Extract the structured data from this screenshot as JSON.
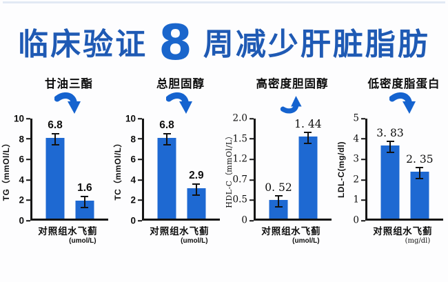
{
  "header": {
    "title_part1": "临床验证",
    "title_number": "8",
    "title_part2": "周减少肝脏脂肪"
  },
  "colors": {
    "title_blue": "#1f5ab4",
    "number_blue": "#1a66cc",
    "bar_blue": "#1e69d2",
    "arrow_blue": "#1563cf",
    "top_line": "#e2e9f4"
  },
  "chart_data": [
    {
      "type": "bar",
      "title": "甘油三酯",
      "trend_arrow": "down",
      "ylabel": "TG（mmOl/L）",
      "ylim": [
        0,
        10
      ],
      "yticks": [
        "10",
        "8",
        "6",
        "4",
        "2",
        "0"
      ],
      "categories": [
        "对照组",
        "水飞蓟"
      ],
      "category_unit": "(umol/L)",
      "values": [
        6.8,
        1.6
      ],
      "value_labels": [
        "6.8",
        "1.6"
      ],
      "bar_top_pct": [
        81,
        18
      ],
      "error_bars": true,
      "legend": "none",
      "grid": false
    },
    {
      "type": "bar",
      "title": "总胆固醇",
      "trend_arrow": "down",
      "ylabel": "TC（mmOl/L）",
      "ylim": [
        0,
        10
      ],
      "yticks": [
        "10",
        "8",
        "6",
        "4",
        "2",
        "0"
      ],
      "categories": [
        "对照组",
        "水飞蓟"
      ],
      "category_unit": "(umol/L)",
      "values": [
        6.8,
        2.9
      ],
      "value_labels": [
        "6.8",
        "2.9"
      ],
      "bar_top_pct": [
        81,
        30.5
      ],
      "error_bars": true,
      "legend": "none",
      "grid": false
    },
    {
      "type": "bar",
      "title": "高密度胆固醇",
      "trend_arrow": "up",
      "ylabel": "HDL-C（mmOl/L）",
      "ylim": [
        0,
        2
      ],
      "yticks": [
        "2.0",
        "1.5",
        "1.2",
        "0.7",
        "0.5",
        "0"
      ],
      "categories": [
        "对照组",
        "水飞蓟"
      ],
      "category_unit": "(umol/L)",
      "values": [
        0.52,
        1.44
      ],
      "value_labels": [
        "0. 52",
        "1. 44"
      ],
      "bar_top_pct": [
        18.5,
        82
      ],
      "error_bars": true,
      "legend": "none",
      "grid": false
    },
    {
      "type": "bar",
      "title": "低密度脂蛋白",
      "trend_arrow": "down",
      "ylabel": "LDL-C(mg/dl)",
      "ylim": [
        0,
        5
      ],
      "yticks": [
        "5",
        "4",
        "3",
        "2",
        "1",
        "0"
      ],
      "categories": [
        "对照组",
        "水飞蓟"
      ],
      "category_unit": "(mg/dl)",
      "values": [
        3.83,
        2.35
      ],
      "value_labels": [
        "3. 83",
        "2. 35"
      ],
      "bar_top_pct": [
        73,
        47
      ],
      "error_bars": true,
      "legend": "none",
      "grid": false
    }
  ]
}
